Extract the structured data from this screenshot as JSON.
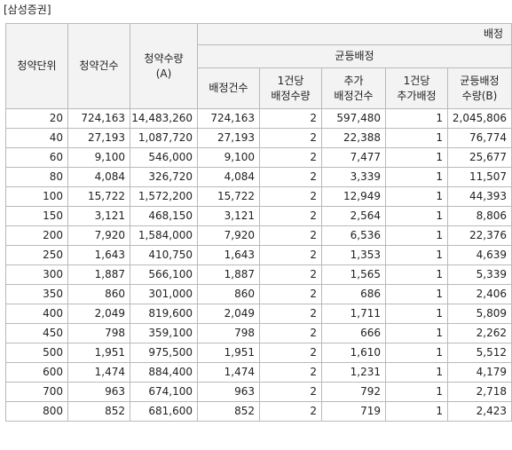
{
  "caption": "[삼성증권]",
  "headers": {
    "unit": "청약단위",
    "count": "청약건수",
    "quantity_line1": "청약수량",
    "quantity_line2": "(A)",
    "top_group": "배정",
    "equal_group": "균등배정",
    "alloc_count": "배정건수",
    "per_alloc_line1": "1건당",
    "per_alloc_line2": "배정수량",
    "extra_count_line1": "추가",
    "extra_count_line2": "배정건수",
    "per_extra_line1": "1건당",
    "per_extra_line2": "추가배정",
    "equal_qty_line1": "균등배정",
    "equal_qty_line2": "수량(B)"
  },
  "rows": [
    [
      "20",
      "724,163",
      "14,483,260",
      "724,163",
      "2",
      "597,480",
      "1",
      "2,045,806"
    ],
    [
      "40",
      "27,193",
      "1,087,720",
      "27,193",
      "2",
      "22,388",
      "1",
      "76,774"
    ],
    [
      "60",
      "9,100",
      "546,000",
      "9,100",
      "2",
      "7,477",
      "1",
      "25,677"
    ],
    [
      "80",
      "4,084",
      "326,720",
      "4,084",
      "2",
      "3,339",
      "1",
      "11,507"
    ],
    [
      "100",
      "15,722",
      "1,572,200",
      "15,722",
      "2",
      "12,949",
      "1",
      "44,393"
    ],
    [
      "150",
      "3,121",
      "468,150",
      "3,121",
      "2",
      "2,564",
      "1",
      "8,806"
    ],
    [
      "200",
      "7,920",
      "1,584,000",
      "7,920",
      "2",
      "6,536",
      "1",
      "22,376"
    ],
    [
      "250",
      "1,643",
      "410,750",
      "1,643",
      "2",
      "1,353",
      "1",
      "4,639"
    ],
    [
      "300",
      "1,887",
      "566,100",
      "1,887",
      "2",
      "1,565",
      "1",
      "5,339"
    ],
    [
      "350",
      "860",
      "301,000",
      "860",
      "2",
      "686",
      "1",
      "2,406"
    ],
    [
      "400",
      "2,049",
      "819,600",
      "2,049",
      "2",
      "1,711",
      "1",
      "5,809"
    ],
    [
      "450",
      "798",
      "359,100",
      "798",
      "2",
      "666",
      "1",
      "2,262"
    ],
    [
      "500",
      "1,951",
      "975,500",
      "1,951",
      "2",
      "1,610",
      "1",
      "5,512"
    ],
    [
      "600",
      "1,474",
      "884,400",
      "1,474",
      "2",
      "1,231",
      "1",
      "4,179"
    ],
    [
      "700",
      "963",
      "674,100",
      "963",
      "2",
      "792",
      "1",
      "2,718"
    ],
    [
      "800",
      "852",
      "681,600",
      "852",
      "2",
      "719",
      "1",
      "2,423"
    ]
  ]
}
